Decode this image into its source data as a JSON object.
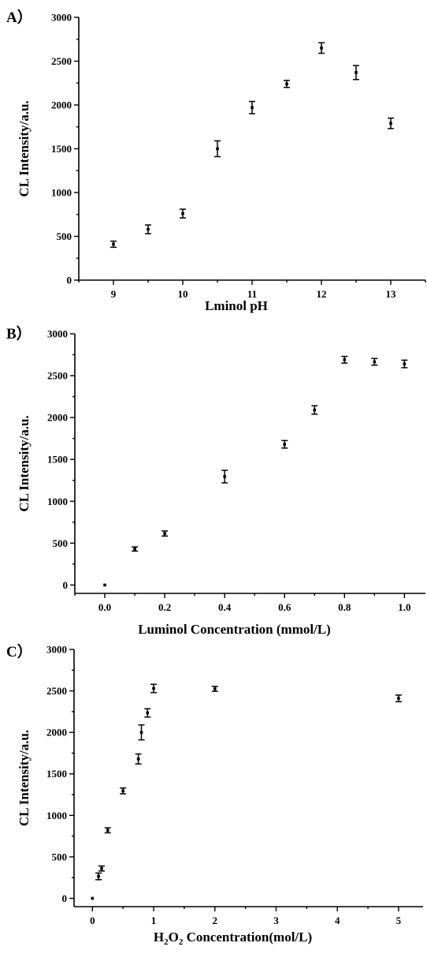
{
  "chart_data": [
    {
      "type": "scatter",
      "panel_label": "A）",
      "xlabel": "Lminol pH",
      "ylabel": "CL Intensity/a.u.",
      "xlim": [
        8.5,
        13.5
      ],
      "ylim": [
        0,
        3000
      ],
      "xticks": [
        9,
        10,
        11,
        12,
        13
      ],
      "xtick_labels": [
        "9",
        "10",
        "11",
        "12",
        "13"
      ],
      "yticks": [
        0,
        500,
        1000,
        1500,
        2000,
        2500,
        3000
      ],
      "ytick_labels": [
        "0",
        "500",
        "1000",
        "1500",
        "2000",
        "2500",
        "3000"
      ],
      "x": [
        9,
        9.5,
        10,
        10.5,
        11,
        11.5,
        12,
        12.5,
        13
      ],
      "y": [
        410,
        580,
        760,
        1500,
        1970,
        2240,
        2650,
        2370,
        1790
      ],
      "error": [
        35,
        50,
        50,
        90,
        70,
        40,
        60,
        80,
        60
      ]
    },
    {
      "type": "scatter",
      "panel_label": "B）",
      "xlabel": "Luminol Concentration (mmol/L)",
      "ylabel": "CL Intensity/a.u.",
      "xlim": [
        -0.1,
        1.07
      ],
      "ylim": [
        -100,
        3000
      ],
      "xticks": [
        0.0,
        0.2,
        0.4,
        0.6,
        0.8,
        1.0
      ],
      "xtick_labels": [
        "0.0",
        "0.2",
        "0.4",
        "0.6",
        "0.8",
        "1.0"
      ],
      "yticks": [
        0,
        500,
        1000,
        1500,
        2000,
        2500,
        3000
      ],
      "ytick_labels": [
        "0",
        "500",
        "1000",
        "1500",
        "2000",
        "2500",
        "3000"
      ],
      "x": [
        0.0,
        0.1,
        0.2,
        0.4,
        0.6,
        0.7,
        0.8,
        0.9,
        1.0
      ],
      "y": [
        0,
        430,
        615,
        1295,
        1680,
        2090,
        2690,
        2665,
        2640
      ],
      "error": [
        0,
        25,
        30,
        75,
        45,
        50,
        40,
        40,
        45
      ]
    },
    {
      "type": "scatter",
      "panel_label": "C）",
      "xlabel_parts": [
        "H",
        "2",
        "O",
        "2",
        " Concentration(mol/L)"
      ],
      "ylabel": "CL Intensity/a.u.",
      "xlim": [
        -0.3,
        5.4
      ],
      "ylim": [
        -100,
        3000
      ],
      "xticks": [
        0,
        1,
        2,
        3,
        4,
        5
      ],
      "xtick_labels": [
        "0",
        "1",
        "2",
        "3",
        "4",
        "5"
      ],
      "yticks": [
        0,
        500,
        1000,
        1500,
        2000,
        2500,
        3000
      ],
      "ytick_labels": [
        "0",
        "500",
        "1000",
        "1500",
        "2000",
        "2500",
        "3000"
      ],
      "x": [
        0.0,
        0.1,
        0.15,
        0.25,
        0.5,
        0.75,
        0.8,
        0.9,
        1.0,
        2.0,
        5.0
      ],
      "y": [
        0,
        265,
        360,
        820,
        1295,
        1680,
        2000,
        2235,
        2530,
        2525,
        2410
      ],
      "error": [
        0,
        40,
        30,
        30,
        35,
        60,
        90,
        50,
        50,
        30,
        40
      ]
    }
  ]
}
